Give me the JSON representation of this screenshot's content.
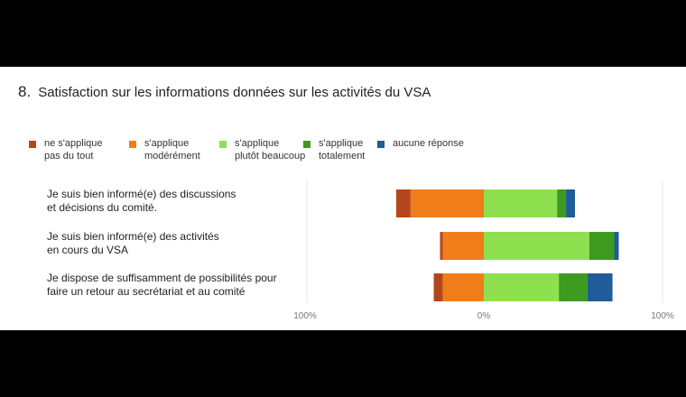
{
  "question_number": "8.",
  "title": "Satisfaction sur les informations données sur les activités du VSA",
  "colors": {
    "pas_du_tout": "#b5451b",
    "moderement": "#ef7d1a",
    "plutot_beaucoup": "#8fe04f",
    "totalement": "#3d9b1f",
    "aucune_reponse": "#1f5c99"
  },
  "legend": [
    {
      "key": "pas_du_tout",
      "label": "ne s'applique\npas du tout"
    },
    {
      "key": "moderement",
      "label": "s'applique\nmodérément"
    },
    {
      "key": "plutot_beaucoup",
      "label": "s'applique\nplutôt beaucoup"
    },
    {
      "key": "totalement",
      "label": "s'applique\ntotalement"
    },
    {
      "key": "aucune_reponse",
      "label": "aucune réponse"
    }
  ],
  "chart_data": {
    "type": "bar",
    "orientation": "horizontal",
    "stacking": "diverging",
    "title": "Satisfaction sur les informations données sur les activités du VSA",
    "categories": [
      "Je suis bien informé(e) des discussions\net décisions du comité.",
      "Je suis bien informé(e) des activités\nen cours du VSA",
      "Je dispose de suffisamment de possibilités pour\n faire un retour au secrétariat et au comité"
    ],
    "series": [
      {
        "name": "ne s'applique pas du tout",
        "key": "pas_du_tout",
        "values": [
          8,
          1.5,
          5
        ]
      },
      {
        "name": "s'applique modérément",
        "key": "moderement",
        "values": [
          41,
          23,
          23
        ]
      },
      {
        "name": "s'applique plutôt beaucoup",
        "key": "plutot_beaucoup",
        "values": [
          41,
          59,
          42
        ]
      },
      {
        "name": "s'applique totalement",
        "key": "totalement",
        "values": [
          5,
          14,
          16
        ]
      },
      {
        "name": "aucune réponse",
        "key": "aucune_reponse",
        "values": [
          5,
          2.5,
          14
        ]
      }
    ],
    "negative_keys": [
      "pas_du_tout",
      "moderement"
    ],
    "xlim": [
      -100,
      100
    ],
    "tick_labels": [
      "100%",
      "0%",
      "100%"
    ],
    "tick_values": [
      -100,
      0,
      100
    ],
    "xlabel": "",
    "ylabel": "",
    "grid": false,
    "legend_position": "top"
  }
}
